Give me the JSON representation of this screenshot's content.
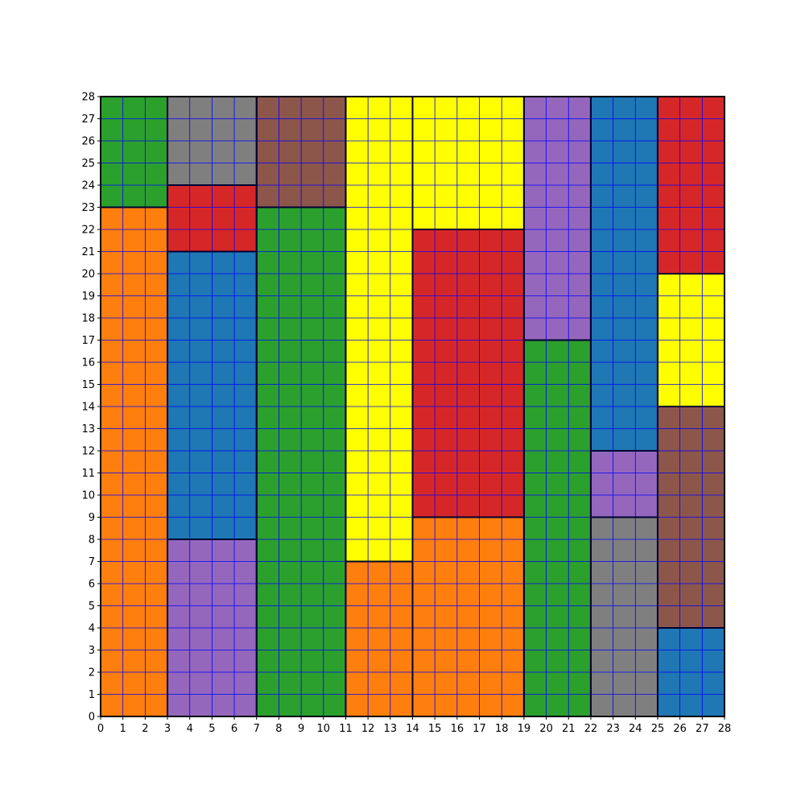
{
  "chart_data": {
    "type": "grid-partition",
    "title": "",
    "xlabel": "",
    "ylabel": "",
    "xlim": [
      0,
      28
    ],
    "ylim": [
      0,
      28
    ],
    "grid": true,
    "grid_color": "#0000ff",
    "border_color": "#000033",
    "x_ticks": [
      0,
      1,
      2,
      3,
      4,
      5,
      6,
      7,
      8,
      9,
      10,
      11,
      12,
      13,
      14,
      15,
      16,
      17,
      18,
      19,
      20,
      21,
      22,
      23,
      24,
      25,
      26,
      27,
      28
    ],
    "y_ticks": [
      0,
      1,
      2,
      3,
      4,
      5,
      6,
      7,
      8,
      9,
      10,
      11,
      12,
      13,
      14,
      15,
      16,
      17,
      18,
      19,
      20,
      21,
      22,
      23,
      24,
      25,
      26,
      27,
      28
    ],
    "colors": {
      "orange": "#ff7f0e",
      "green": "#2ca02c",
      "gray": "#7f7f7f",
      "red": "#d62728",
      "blue": "#1f77b4",
      "purple": "#9467bd",
      "brown": "#8c564b",
      "yellow": "#ffff00"
    },
    "rectangles": [
      {
        "x0": 0,
        "x1": 3,
        "y0": 0,
        "y1": 23,
        "color": "orange"
      },
      {
        "x0": 0,
        "x1": 3,
        "y0": 23,
        "y1": 28,
        "color": "green"
      },
      {
        "x0": 3,
        "x1": 7,
        "y0": 24,
        "y1": 28,
        "color": "gray"
      },
      {
        "x0": 3,
        "x1": 7,
        "y0": 21,
        "y1": 24,
        "color": "red"
      },
      {
        "x0": 3,
        "x1": 7,
        "y0": 8,
        "y1": 21,
        "color": "blue"
      },
      {
        "x0": 3,
        "x1": 7,
        "y0": 0,
        "y1": 8,
        "color": "purple"
      },
      {
        "x0": 7,
        "x1": 11,
        "y0": 23,
        "y1": 28,
        "color": "brown"
      },
      {
        "x0": 7,
        "x1": 11,
        "y0": 0,
        "y1": 23,
        "color": "green"
      },
      {
        "x0": 11,
        "x1": 14,
        "y0": 7,
        "y1": 28,
        "color": "yellow"
      },
      {
        "x0": 11,
        "x1": 14,
        "y0": 0,
        "y1": 7,
        "color": "orange"
      },
      {
        "x0": 14,
        "x1": 19,
        "y0": 22,
        "y1": 28,
        "color": "yellow"
      },
      {
        "x0": 14,
        "x1": 19,
        "y0": 9,
        "y1": 22,
        "color": "red"
      },
      {
        "x0": 14,
        "x1": 19,
        "y0": 0,
        "y1": 9,
        "color": "orange"
      },
      {
        "x0": 19,
        "x1": 22,
        "y0": 17,
        "y1": 28,
        "color": "purple"
      },
      {
        "x0": 19,
        "x1": 22,
        "y0": 0,
        "y1": 17,
        "color": "green"
      },
      {
        "x0": 22,
        "x1": 25,
        "y0": 12,
        "y1": 28,
        "color": "blue"
      },
      {
        "x0": 22,
        "x1": 25,
        "y0": 9,
        "y1": 12,
        "color": "purple"
      },
      {
        "x0": 22,
        "x1": 25,
        "y0": 0,
        "y1": 9,
        "color": "gray"
      },
      {
        "x0": 25,
        "x1": 28,
        "y0": 20,
        "y1": 28,
        "color": "red"
      },
      {
        "x0": 25,
        "x1": 28,
        "y0": 14,
        "y1": 20,
        "color": "yellow"
      },
      {
        "x0": 25,
        "x1": 28,
        "y0": 4,
        "y1": 14,
        "color": "brown"
      },
      {
        "x0": 25,
        "x1": 28,
        "y0": 0,
        "y1": 4,
        "color": "blue"
      }
    ]
  }
}
